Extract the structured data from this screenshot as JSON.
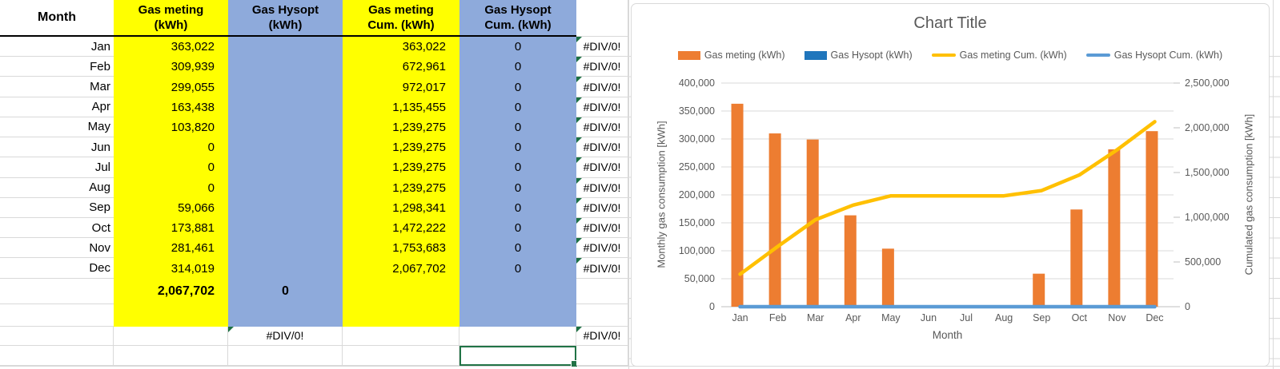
{
  "table": {
    "headers": {
      "month": "Month",
      "gas_meting": "Gas meting\n(kWh)",
      "gas_hysopt": "Gas Hysopt\n(kWh)",
      "gas_meting_cum": "Gas meting\nCum. (kWh)",
      "gas_hysopt_cum": "Gas Hysopt\nCum. (kWh)"
    },
    "rows": [
      {
        "month": "Jan",
        "gas_meting": "363,022",
        "gas_hysopt": "",
        "gas_meting_cum": "363,022",
        "gas_hysopt_cum": "0",
        "error": "#DIV/0!"
      },
      {
        "month": "Feb",
        "gas_meting": "309,939",
        "gas_hysopt": "",
        "gas_meting_cum": "672,961",
        "gas_hysopt_cum": "0",
        "error": "#DIV/0!"
      },
      {
        "month": "Mar",
        "gas_meting": "299,055",
        "gas_hysopt": "",
        "gas_meting_cum": "972,017",
        "gas_hysopt_cum": "0",
        "error": "#DIV/0!"
      },
      {
        "month": "Apr",
        "gas_meting": "163,438",
        "gas_hysopt": "",
        "gas_meting_cum": "1,135,455",
        "gas_hysopt_cum": "0",
        "error": "#DIV/0!"
      },
      {
        "month": "May",
        "gas_meting": "103,820",
        "gas_hysopt": "",
        "gas_meting_cum": "1,239,275",
        "gas_hysopt_cum": "0",
        "error": "#DIV/0!"
      },
      {
        "month": "Jun",
        "gas_meting": "0",
        "gas_hysopt": "",
        "gas_meting_cum": "1,239,275",
        "gas_hysopt_cum": "0",
        "error": "#DIV/0!"
      },
      {
        "month": "Jul",
        "gas_meting": "0",
        "gas_hysopt": "",
        "gas_meting_cum": "1,239,275",
        "gas_hysopt_cum": "0",
        "error": "#DIV/0!"
      },
      {
        "month": "Aug",
        "gas_meting": "0",
        "gas_hysopt": "",
        "gas_meting_cum": "1,239,275",
        "gas_hysopt_cum": "0",
        "error": "#DIV/0!"
      },
      {
        "month": "Sep",
        "gas_meting": "59,066",
        "gas_hysopt": "",
        "gas_meting_cum": "1,298,341",
        "gas_hysopt_cum": "0",
        "error": "#DIV/0!"
      },
      {
        "month": "Oct",
        "gas_meting": "173,881",
        "gas_hysopt": "",
        "gas_meting_cum": "1,472,222",
        "gas_hysopt_cum": "0",
        "error": "#DIV/0!"
      },
      {
        "month": "Nov",
        "gas_meting": "281,461",
        "gas_hysopt": "",
        "gas_meting_cum": "1,753,683",
        "gas_hysopt_cum": "0",
        "error": "#DIV/0!"
      },
      {
        "month": "Dec",
        "gas_meting": "314,019",
        "gas_hysopt": "",
        "gas_meting_cum": "2,067,702",
        "gas_hysopt_cum": "0",
        "error": "#DIV/0!"
      }
    ],
    "total": {
      "gas_meting": "2,067,702",
      "gas_hysopt": "0"
    },
    "bottom": {
      "gas_hysopt_error": "#DIV/0!",
      "right_error": "#DIV/0!"
    },
    "fill_colors": {
      "yellow": "#FFFF00",
      "blue": "#8EAADB"
    },
    "selection_color": "#217346",
    "error_indicator_color": "#1D7044"
  },
  "chart_data": {
    "type": "combo",
    "title": "Chart Title",
    "xlabel": "Month",
    "ylabel_left": "Monthly gas consumption [kWh]",
    "ylabel_right": "Cumulated gas consumption [kWh]",
    "legend_position": "top",
    "grid": true,
    "categories": [
      "Jan",
      "Feb",
      "Mar",
      "Apr",
      "May",
      "Jun",
      "Jul",
      "Aug",
      "Sep",
      "Oct",
      "Nov",
      "Dec"
    ],
    "axes": {
      "primary": {
        "min": 0,
        "max": 400000,
        "step": 50000
      },
      "secondary": {
        "min": 0,
        "max": 2500000,
        "step": 500000
      }
    },
    "series": [
      {
        "name": "Gas meting (kWh)",
        "type": "bar",
        "axis": "primary",
        "color": "#ED7D31",
        "values": [
          363022,
          309939,
          299055,
          163438,
          103820,
          0,
          0,
          0,
          59066,
          173881,
          281461,
          314019
        ]
      },
      {
        "name": "Gas Hysopt (kWh)",
        "type": "bar",
        "axis": "primary",
        "color": "#2076BC",
        "values": [
          0,
          0,
          0,
          0,
          0,
          0,
          0,
          0,
          0,
          0,
          0,
          0
        ]
      },
      {
        "name": "Gas meting Cum. (kWh)",
        "type": "line",
        "axis": "secondary",
        "color": "#FFC000",
        "values": [
          363022,
          672961,
          972017,
          1135455,
          1239275,
          1239275,
          1239275,
          1239275,
          1298341,
          1472222,
          1753683,
          2067702
        ]
      },
      {
        "name": "Gas Hysopt Cum. (kWh)",
        "type": "line",
        "axis": "secondary",
        "color": "#5B9BD5",
        "values": [
          0,
          0,
          0,
          0,
          0,
          0,
          0,
          0,
          0,
          0,
          0,
          0
        ]
      }
    ]
  }
}
